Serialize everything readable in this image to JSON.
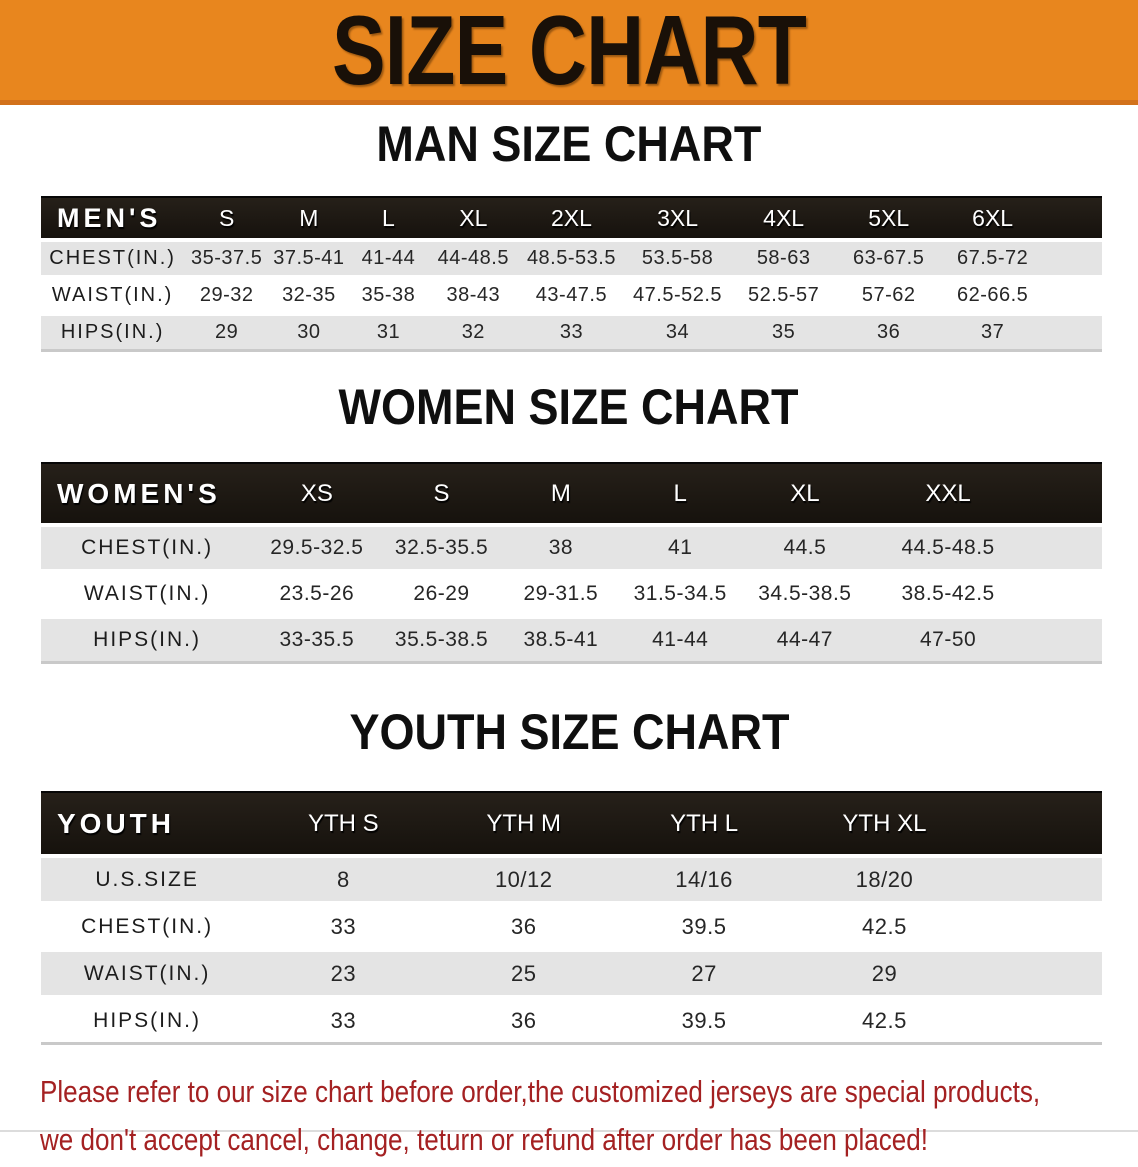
{
  "banner": {
    "title": "SIZE CHART"
  },
  "colors": {
    "banner_orange": "#e8861e",
    "banner_edge": "#d2711b",
    "header_bar_black": "#1b1713",
    "row_stripe_gray": "#e4e4e4",
    "note_red": "#a42122"
  },
  "men": {
    "section_title": "MAN SIZE CHART",
    "corner_label": "MEN'S",
    "sizes": [
      "S",
      "M",
      "L",
      "XL",
      "2XL",
      "3XL",
      "4XL",
      "5XL",
      "6XL"
    ],
    "rows": [
      {
        "label": "CHEST(IN.)",
        "values": [
          "35-37.5",
          "37.5-41",
          "41-44",
          "44-48.5",
          "48.5-53.5",
          "53.5-58",
          "58-63",
          "63-67.5",
          "67.5-72"
        ]
      },
      {
        "label": "WAIST(IN.)",
        "values": [
          "29-32",
          "32-35",
          "35-38",
          "38-43",
          "43-47.5",
          "47.5-52.5",
          "52.5-57",
          "57-62",
          "62-66.5"
        ]
      },
      {
        "label": "HIPS(IN.)",
        "values": [
          "29",
          "30",
          "31",
          "32",
          "33",
          "34",
          "35",
          "36",
          "37"
        ]
      }
    ]
  },
  "women": {
    "section_title": "WOMEN SIZE CHART",
    "corner_label": "WOMEN'S",
    "sizes": [
      "XS",
      "S",
      "M",
      "L",
      "XL",
      "XXL"
    ],
    "rows": [
      {
        "label": "CHEST(IN.)",
        "values": [
          "29.5-32.5",
          "32.5-35.5",
          "38",
          "41",
          "44.5",
          "44.5-48.5"
        ]
      },
      {
        "label": "WAIST(IN.)",
        "values": [
          "23.5-26",
          "26-29",
          "29-31.5",
          "31.5-34.5",
          "34.5-38.5",
          "38.5-42.5"
        ]
      },
      {
        "label": "HIPS(IN.)",
        "values": [
          "33-35.5",
          "35.5-38.5",
          "38.5-41",
          "41-44",
          "44-47",
          "47-50"
        ]
      }
    ]
  },
  "youth": {
    "section_title": "YOUTH SIZE CHART",
    "corner_label": "YOUTH",
    "sizes": [
      "YTH S",
      "YTH M",
      "YTH L",
      "YTH XL"
    ],
    "rows": [
      {
        "label": "U.S.SIZE",
        "values": [
          "8",
          "10/12",
          "14/16",
          "18/20"
        ]
      },
      {
        "label": "CHEST(IN.)",
        "values": [
          "33",
          "36",
          "39.5",
          "42.5"
        ]
      },
      {
        "label": "WAIST(IN.)",
        "values": [
          "23",
          "25",
          "27",
          "29"
        ]
      },
      {
        "label": "HIPS(IN.)",
        "values": [
          "33",
          "36",
          "39.5",
          "42.5"
        ]
      }
    ]
  },
  "note": {
    "line1": "Please refer to our size chart before order,the customized jerseys are special products,",
    "line2": "we don't accept cancel, change, teturn or refund after order has been placed!"
  }
}
